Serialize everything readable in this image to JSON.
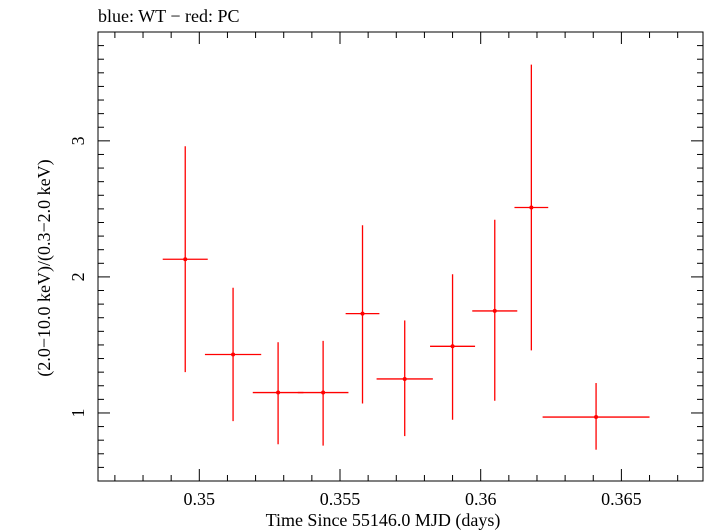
{
  "chart_data": {
    "type": "scatter",
    "title": "blue: WT − red: PC",
    "xlabel": "Time Since 55146.0 MJD (days)",
    "ylabel": "(2.0−10.0 keV)/(0.3−2.0 keV)",
    "xlim": [
      0.3464,
      0.3679
    ],
    "ylim": [
      0.5,
      3.8
    ],
    "xticks": [
      0.35,
      0.355,
      0.36,
      0.365
    ],
    "xtick_labels": [
      "0.35",
      "0.355",
      "0.36",
      "0.365"
    ],
    "yticks": [
      1,
      2,
      3
    ],
    "ytick_labels": [
      "1",
      "2",
      "3"
    ],
    "grid": false,
    "series": [
      {
        "name": "PC",
        "color": "#ff0000",
        "points": [
          {
            "x": 0.3495,
            "xerr": 0.0008,
            "y": 2.13,
            "ylo": 1.3,
            "yhi": 2.96
          },
          {
            "x": 0.3512,
            "xerr": 0.001,
            "y": 1.43,
            "ylo": 0.94,
            "yhi": 1.92
          },
          {
            "x": 0.3528,
            "xerr": 0.0009,
            "y": 1.15,
            "ylo": 0.77,
            "yhi": 1.52
          },
          {
            "x": 0.3544,
            "xerr": 0.0009,
            "y": 1.15,
            "ylo": 0.76,
            "yhi": 1.53
          },
          {
            "x": 0.3558,
            "xerr": 0.0006,
            "y": 1.73,
            "ylo": 1.07,
            "yhi": 2.38
          },
          {
            "x": 0.3573,
            "xerr": 0.001,
            "y": 1.25,
            "ylo": 0.83,
            "yhi": 1.68
          },
          {
            "x": 0.359,
            "xerr": 0.0008,
            "y": 1.49,
            "ylo": 0.95,
            "yhi": 2.02
          },
          {
            "x": 0.3605,
            "xerr": 0.0008,
            "y": 1.75,
            "ylo": 1.09,
            "yhi": 2.42
          },
          {
            "x": 0.3618,
            "xerr": 0.0006,
            "y": 2.51,
            "ylo": 1.46,
            "yhi": 3.56
          },
          {
            "x": 0.3641,
            "xerr": 0.0019,
            "y": 0.97,
            "ylo": 0.73,
            "yhi": 1.22
          }
        ]
      }
    ]
  }
}
